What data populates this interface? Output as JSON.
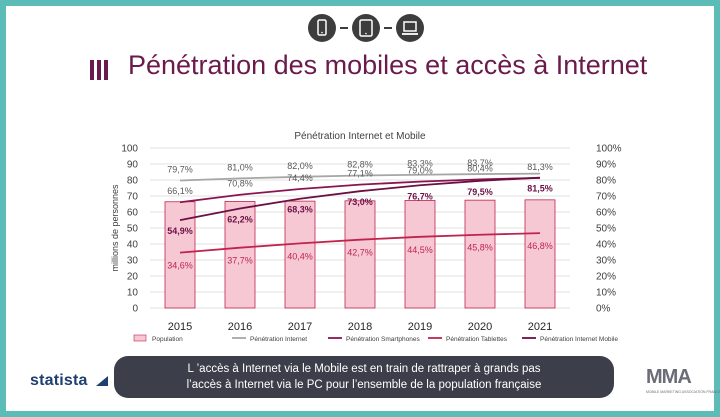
{
  "header": {
    "title": "Pénétration des mobiles et accès à Internet",
    "device_icons": [
      "smartphone-icon",
      "tablet-icon",
      "laptop-icon"
    ]
  },
  "chart_data": {
    "type": "bar+line",
    "title": "Pénétration Internet et Mobile",
    "ylabel": "millions de personnes",
    "y_left_range": [
      0,
      100
    ],
    "y_left_ticks": [
      "0",
      "10",
      "20",
      "30",
      "40",
      "50",
      "60",
      "70",
      "80",
      "90",
      "100"
    ],
    "y_right_range": [
      0,
      100
    ],
    "y_right_ticks": [
      "0%",
      "10%",
      "20%",
      "30%",
      "40%",
      "50%",
      "60%",
      "70%",
      "80%",
      "90%",
      "100%"
    ],
    "categories": [
      "2015",
      "2016",
      "2017",
      "2018",
      "2019",
      "2020",
      "2021"
    ],
    "bars": {
      "name": "Population",
      "values": [
        66.4,
        66.6,
        66.8,
        67.0,
        67.2,
        67.4,
        67.6
      ]
    },
    "series": [
      {
        "name": "Pénétration Internet",
        "color": "#a6a6a6",
        "values": [
          79.7,
          81.0,
          82.0,
          82.8,
          83.3,
          83.7,
          84.0
        ],
        "labels": [
          "79,7%",
          "81,0%",
          "82,0%",
          "82,8%",
          "83,3%",
          "83,7%",
          ""
        ]
      },
      {
        "name": "Pénétration Smartphones",
        "color": "#8a1450",
        "values": [
          66.1,
          70.8,
          74.4,
          77.1,
          79.0,
          80.4,
          81.3
        ],
        "labels": [
          "66,1%",
          "70,8%",
          "74,4%",
          "77,1%",
          "79,0%",
          "80,4%",
          "81,3%"
        ]
      },
      {
        "name": "Pénétration Tablettes",
        "color": "#c0244e",
        "values": [
          34.6,
          37.7,
          40.4,
          42.7,
          44.5,
          45.8,
          46.8
        ],
        "labels": [
          "34,6%",
          "37,7%",
          "40,4%",
          "42,7%",
          "44,5%",
          "45,8%",
          "46,8%"
        ]
      },
      {
        "name": "Pénétration Internet Mobile",
        "color": "#6b0f45",
        "values": [
          54.9,
          62.2,
          68.3,
          73.0,
          76.7,
          79.5,
          81.5
        ],
        "labels": [
          "54,9%",
          "62,2%",
          "68,3%",
          "73,0%",
          "76,7%",
          "79,5%",
          "81,5%"
        ]
      }
    ],
    "legend": [
      "Population",
      "Pénétration Internet",
      "Pénétration Smartphones",
      "Pénétration Tablettes",
      "Pénétration Internet Mobile"
    ],
    "legend_position": "bottom"
  },
  "caption": {
    "line1": "L ’accès à Internet via le Mobile est en train de rattraper à grands pas",
    "line2": "l’accès à Internet via le PC pour l’ensemble de la population française"
  },
  "brands": {
    "left": "statista",
    "right": "MMA",
    "right_sub": "MOBILE MARKETING ASSOCIATION FRANCE"
  },
  "colors": {
    "frame": "#5bbcb8",
    "title": "#6b1a4c",
    "bar_fill": "#f6c8d3",
    "bar_stroke": "#c0244e",
    "caption_bg": "#3c3f4a"
  }
}
